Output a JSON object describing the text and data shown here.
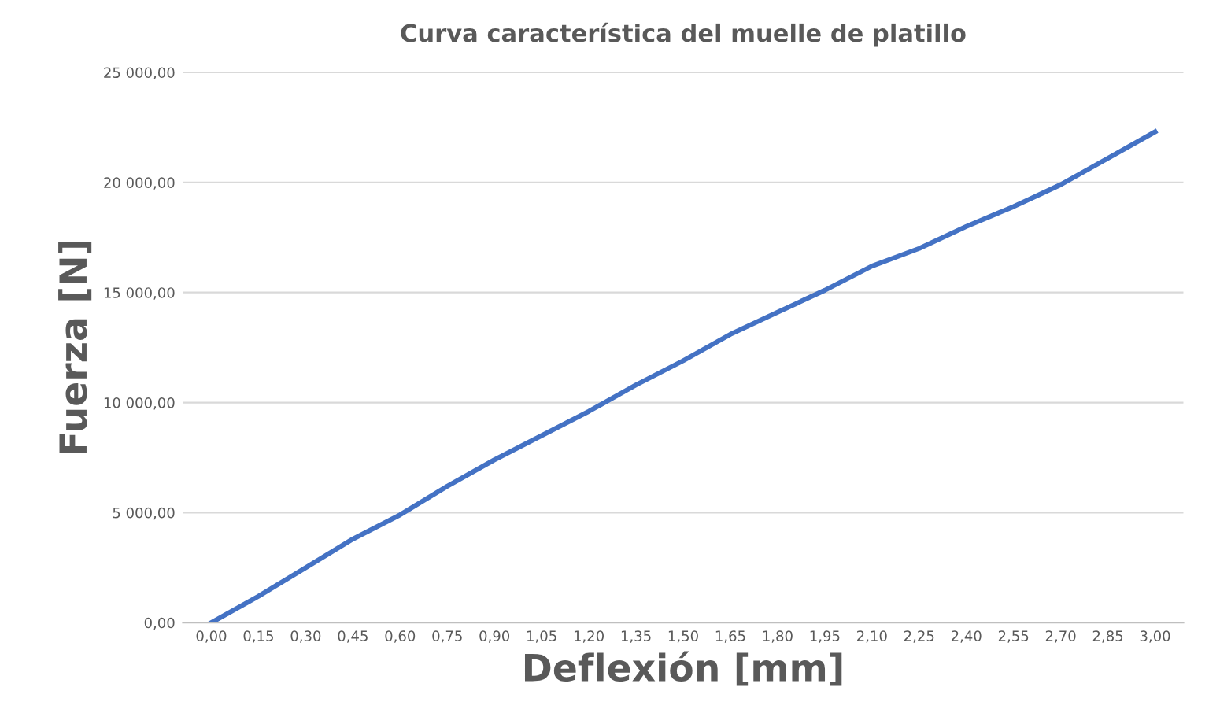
{
  "chart_data": {
    "type": "line",
    "title": "Curva característica del muelle de platillo",
    "xlabel": "Deflexión [mm]",
    "ylabel": "Fuerza [N]",
    "categories": [
      "0,00",
      "0,15",
      "0,30",
      "0,45",
      "0,60",
      "0,75",
      "0,90",
      "1,05",
      "1,20",
      "1,35",
      "1,50",
      "1,65",
      "1,80",
      "1,95",
      "2,10",
      "2,25",
      "2,40",
      "2,55",
      "2,70",
      "2,85",
      "3,00"
    ],
    "series": [
      {
        "color": "#4472c4",
        "values": [
          0,
          1200,
          2500,
          3800,
          4900,
          6200,
          7400,
          8500,
          9600,
          10800,
          11900,
          13100,
          14100,
          15100,
          16200,
          17000,
          18000,
          18900,
          19900,
          21100,
          22300
        ]
      }
    ],
    "ylim": [
      0,
      25000
    ],
    "yticks": [
      {
        "value": 0,
        "label": "0,00"
      },
      {
        "value": 5000,
        "label": "5 000,00"
      },
      {
        "value": 10000,
        "label": "10 000,00"
      },
      {
        "value": 15000,
        "label": "15 000,00"
      },
      {
        "value": 20000,
        "label": "20 000,00"
      },
      {
        "value": 25000,
        "label": "25 000,00"
      }
    ],
    "grid": "y",
    "marker": "none",
    "line_style": "solid"
  }
}
